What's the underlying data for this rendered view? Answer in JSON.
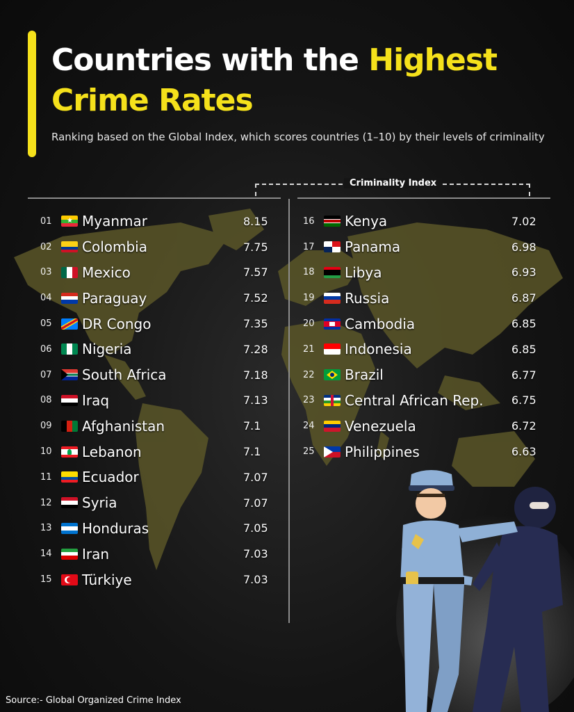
{
  "title": {
    "line1": "Countries with the ",
    "highlight1": "Highest",
    "highlight2": "Crime Rates"
  },
  "subtitle": "Ranking based on the Global Index, which scores countries (1–10) by their levels of criminality",
  "index_label": "Criminality Index",
  "source": "Source:- Global Organized Crime Index",
  "colors": {
    "accent": "#f5e11b",
    "map": "#5a5628"
  },
  "rows": [
    {
      "rank": "01",
      "country": "Myanmar",
      "score": "8.15",
      "flag": "myanmar"
    },
    {
      "rank": "02",
      "country": "Colombia",
      "score": "7.75",
      "flag": "colombia"
    },
    {
      "rank": "03",
      "country": "Mexico",
      "score": "7.57",
      "flag": "mexico"
    },
    {
      "rank": "04",
      "country": "Paraguay",
      "score": "7.52",
      "flag": "paraguay"
    },
    {
      "rank": "05",
      "country": "DR Congo",
      "score": "7.35",
      "flag": "drcongo"
    },
    {
      "rank": "06",
      "country": "Nigeria",
      "score": "7.28",
      "flag": "nigeria"
    },
    {
      "rank": "07",
      "country": "South Africa",
      "score": "7.18",
      "flag": "southafrica"
    },
    {
      "rank": "08",
      "country": "Iraq",
      "score": "7.13",
      "flag": "iraq"
    },
    {
      "rank": "09",
      "country": "Afghanistan",
      "score": "7.1",
      "flag": "afghanistan"
    },
    {
      "rank": "10",
      "country": "Lebanon",
      "score": "7.1",
      "flag": "lebanon"
    },
    {
      "rank": "11",
      "country": "Ecuador",
      "score": "7.07",
      "flag": "ecuador"
    },
    {
      "rank": "12",
      "country": "Syria",
      "score": "7.07",
      "flag": "syria"
    },
    {
      "rank": "13",
      "country": "Honduras",
      "score": "7.05",
      "flag": "honduras"
    },
    {
      "rank": "14",
      "country": "Iran",
      "score": "7.03",
      "flag": "iran"
    },
    {
      "rank": "15",
      "country": "Türkiye",
      "score": "7.03",
      "flag": "turkiye"
    },
    {
      "rank": "16",
      "country": "Kenya",
      "score": "7.02",
      "flag": "kenya"
    },
    {
      "rank": "17",
      "country": "Panama",
      "score": "6.98",
      "flag": "panama"
    },
    {
      "rank": "18",
      "country": "Libya",
      "score": "6.93",
      "flag": "libya"
    },
    {
      "rank": "19",
      "country": "Russia",
      "score": "6.87",
      "flag": "russia"
    },
    {
      "rank": "20",
      "country": "Cambodia",
      "score": "6.85",
      "flag": "cambodia"
    },
    {
      "rank": "21",
      "country": "Indonesia",
      "score": "6.85",
      "flag": "indonesia"
    },
    {
      "rank": "22",
      "country": "Brazil",
      "score": "6.77",
      "flag": "brazil"
    },
    {
      "rank": "23",
      "country": "Central African Rep.",
      "score": "6.75",
      "flag": "car"
    },
    {
      "rank": "24",
      "country": "Venezuela",
      "score": "6.72",
      "flag": "venezuela"
    },
    {
      "rank": "25",
      "country": "Philippines",
      "score": "6.63",
      "flag": "philippines"
    }
  ]
}
